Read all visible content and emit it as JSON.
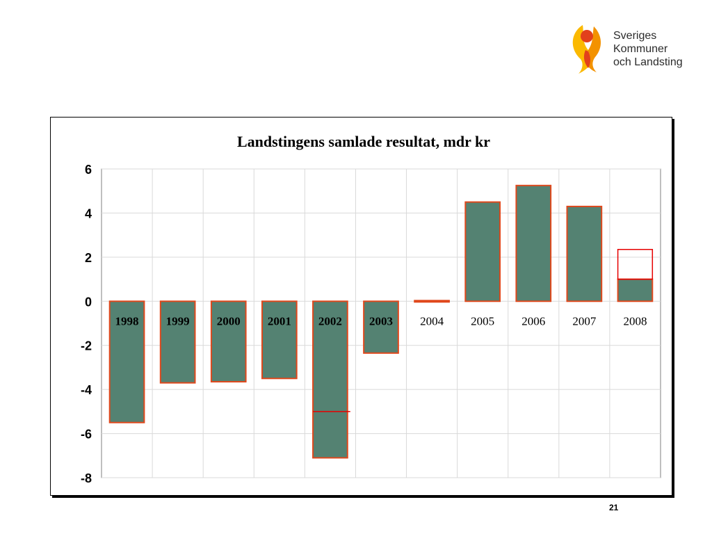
{
  "logo": {
    "lines": [
      "Sveriges",
      "Kommuner",
      "och Landsting"
    ],
    "colors": {
      "orange": "#f39200",
      "red": "#e2401c",
      "yellow": "#fbb900"
    }
  },
  "page_number": "21",
  "chart_data": {
    "type": "bar",
    "title": "Landstingens samlade resultat,  mdr kr",
    "xlabel": "",
    "ylabel": "",
    "categories": [
      "1998",
      "1999",
      "2000",
      "2001",
      "2002",
      "2003",
      "2004",
      "2005",
      "2006",
      "2007",
      "2008"
    ],
    "bold_categories": [
      "1998",
      "1999",
      "2000",
      "2001",
      "2002",
      "2003"
    ],
    "series": [
      {
        "values": [
          -5.5,
          -3.7,
          -3.65,
          -3.5,
          -7.1,
          -2.35,
          -0.05,
          4.5,
          5.25,
          4.3,
          1.0
        ]
      }
    ],
    "markers": [
      {
        "category": "2002",
        "value": -5.0
      }
    ],
    "outlined_segment": {
      "category": "2008",
      "from": 1.0,
      "to": 2.35
    },
    "ylim": [
      -8,
      6
    ],
    "yticks": [
      6,
      4,
      2,
      0,
      -2,
      -4,
      -6,
      -8
    ],
    "grid": true,
    "legend": "none",
    "colors": {
      "bar_fill": "#548272",
      "bar_edge": "#e0481c",
      "marker": "#e60000",
      "outline_box": "#e60000",
      "grid": "#d9d9d9",
      "axis": "#7f7f7f"
    }
  }
}
